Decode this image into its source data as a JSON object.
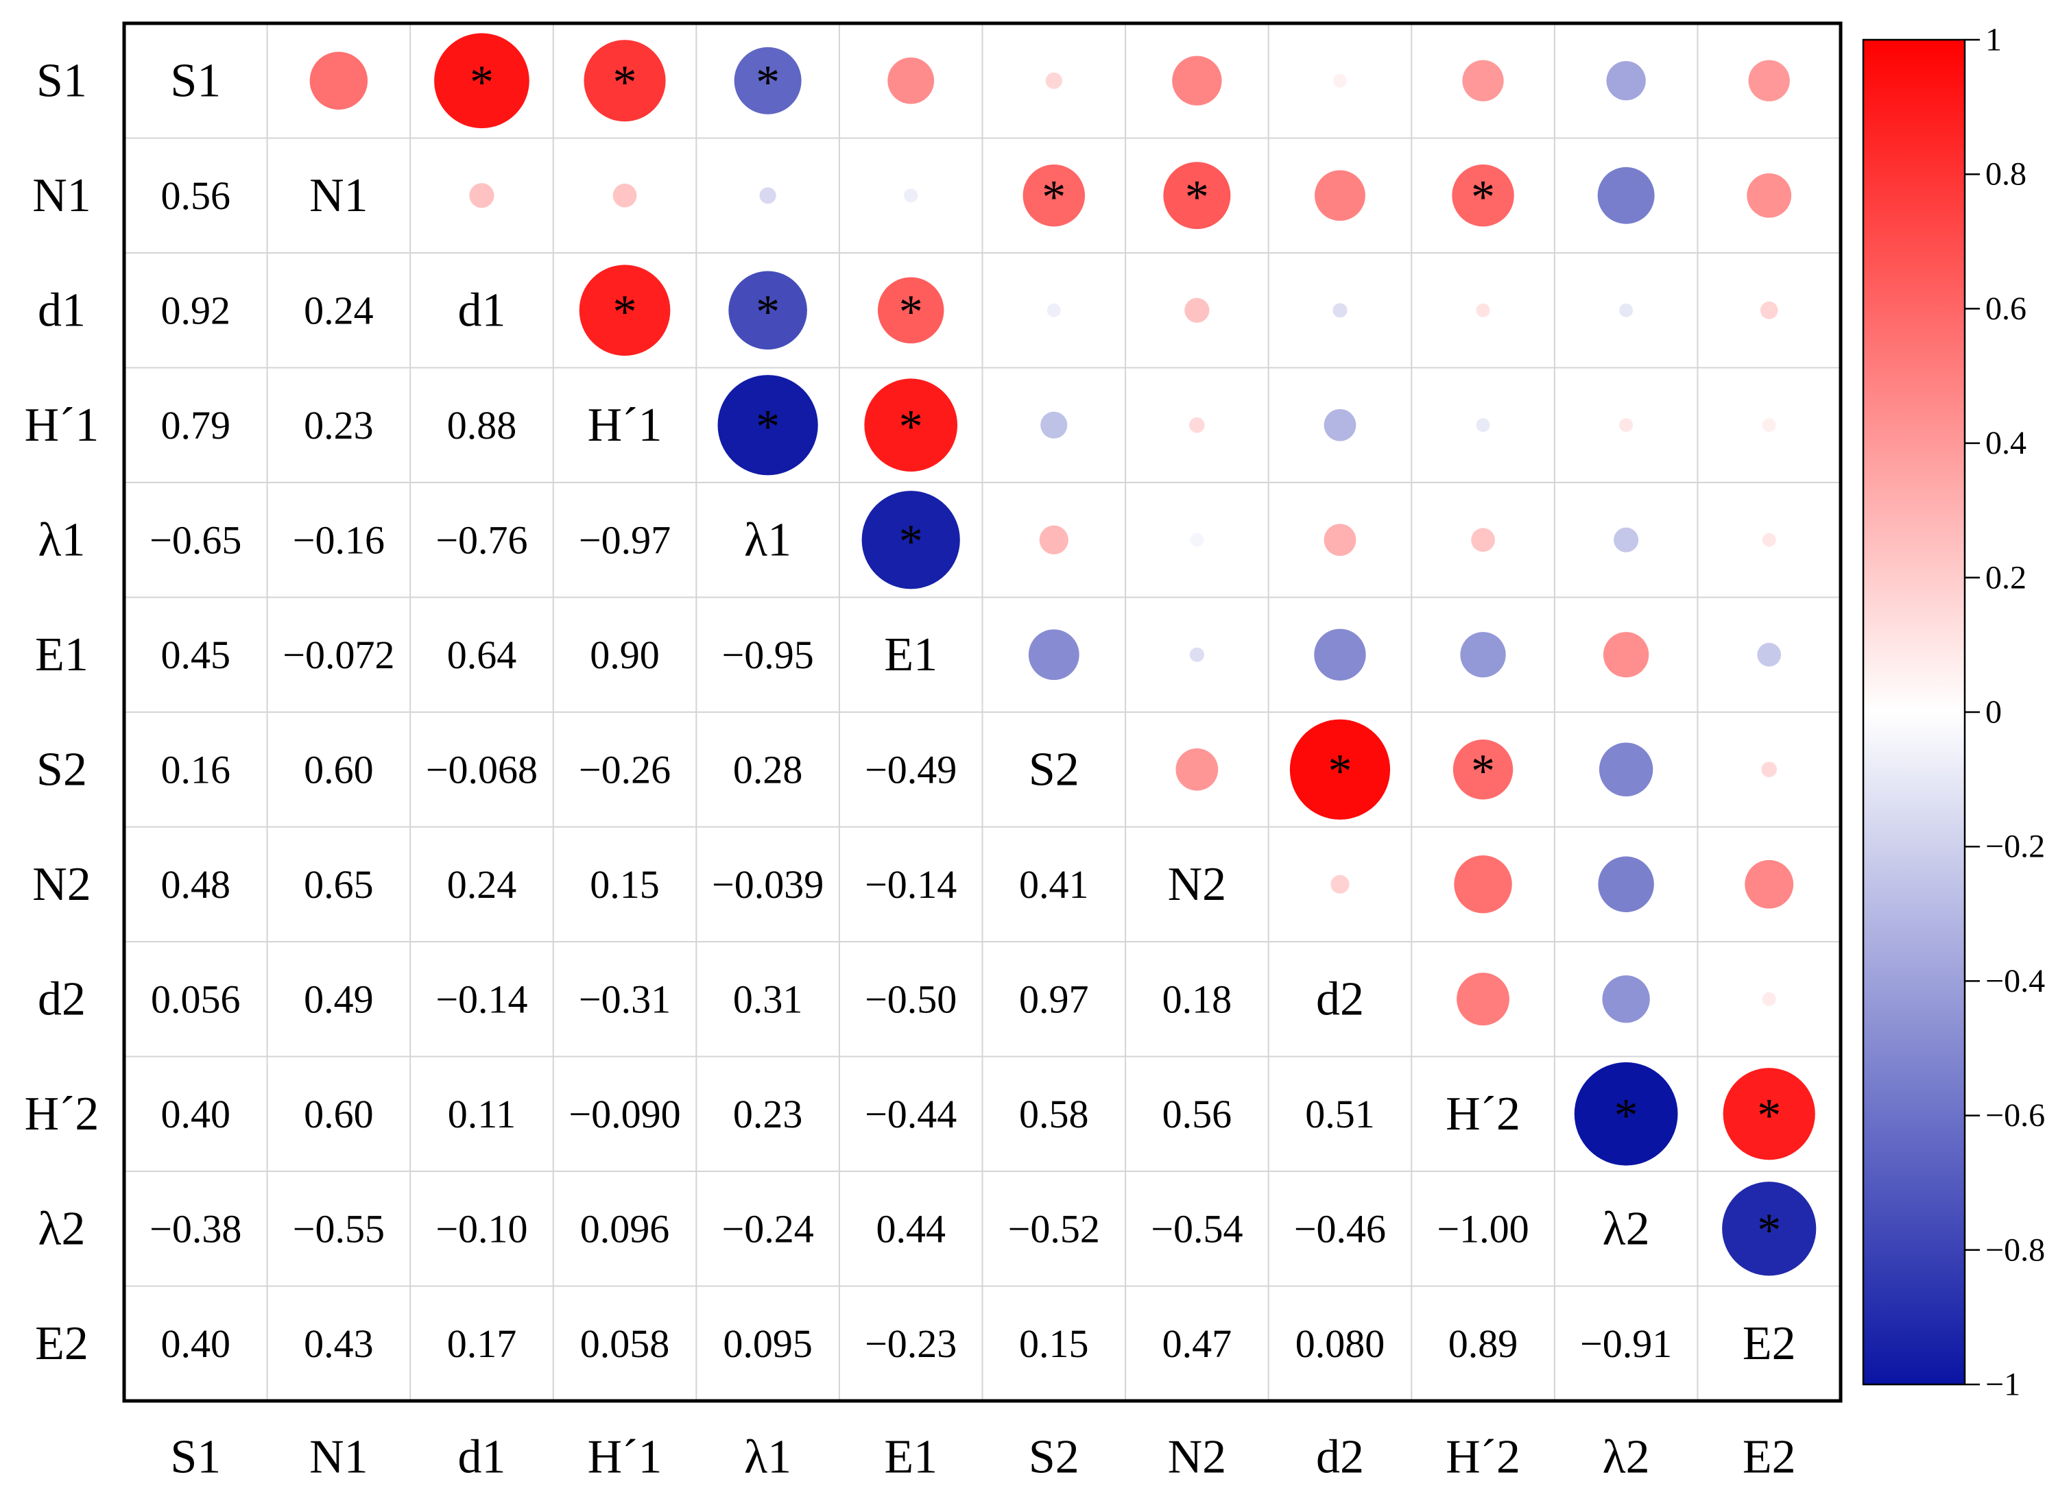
{
  "chart_data": {
    "type": "heatmap",
    "subtype": "correlation-matrix",
    "variables": [
      "S1",
      "N1",
      "d1",
      "H´1",
      "λ1",
      "E1",
      "S2",
      "N2",
      "d2",
      "H´2",
      "λ2",
      "E2"
    ],
    "lower_labels": [
      [],
      [
        "0.56"
      ],
      [
        "0.92",
        "0.24"
      ],
      [
        "0.79",
        "0.23",
        "0.88"
      ],
      [
        "−0.65",
        "−0.16",
        "−0.76",
        "−0.97"
      ],
      [
        "0.45",
        "−0.072",
        "0.64",
        "0.90",
        "−0.95"
      ],
      [
        "0.16",
        "0.60",
        "−0.068",
        "−0.26",
        "0.28",
        "−0.49"
      ],
      [
        "0.48",
        "0.65",
        "0.24",
        "0.15",
        "−0.039",
        "−0.14",
        "0.41"
      ],
      [
        "0.056",
        "0.49",
        "−0.14",
        "−0.31",
        "0.31",
        "−0.50",
        "0.97",
        "0.18"
      ],
      [
        "0.40",
        "0.60",
        "0.11",
        "−0.090",
        "0.23",
        "−0.44",
        "0.58",
        "0.56",
        "0.51"
      ],
      [
        "−0.38",
        "−0.55",
        "−0.10",
        "0.096",
        "−0.24",
        "0.44",
        "−0.52",
        "−0.54",
        "−0.46",
        "−1.00"
      ],
      [
        "0.40",
        "0.43",
        "0.17",
        "0.058",
        "0.095",
        "−0.23",
        "0.15",
        "0.47",
        "0.080",
        "0.89",
        "−0.91"
      ]
    ],
    "significance_marker": "*",
    "significant_pairs": [
      [
        0,
        2
      ],
      [
        0,
        3
      ],
      [
        0,
        4
      ],
      [
        1,
        6
      ],
      [
        1,
        7
      ],
      [
        1,
        9
      ],
      [
        2,
        3
      ],
      [
        2,
        4
      ],
      [
        2,
        5
      ],
      [
        3,
        4
      ],
      [
        3,
        5
      ],
      [
        4,
        5
      ],
      [
        6,
        8
      ],
      [
        6,
        9
      ],
      [
        9,
        10
      ],
      [
        9,
        11
      ],
      [
        10,
        11
      ]
    ],
    "colorbar": {
      "range": [
        -1,
        1
      ],
      "ticks": [
        "1",
        "0.8",
        "0.6",
        "0.4",
        "0.2",
        "0",
        "−0.2",
        "−0.4",
        "−0.6",
        "−0.8",
        "−1"
      ],
      "colors": {
        "negative": "#0a14a3",
        "zero": "#ffffff",
        "positive": "#ff0000"
      }
    }
  }
}
